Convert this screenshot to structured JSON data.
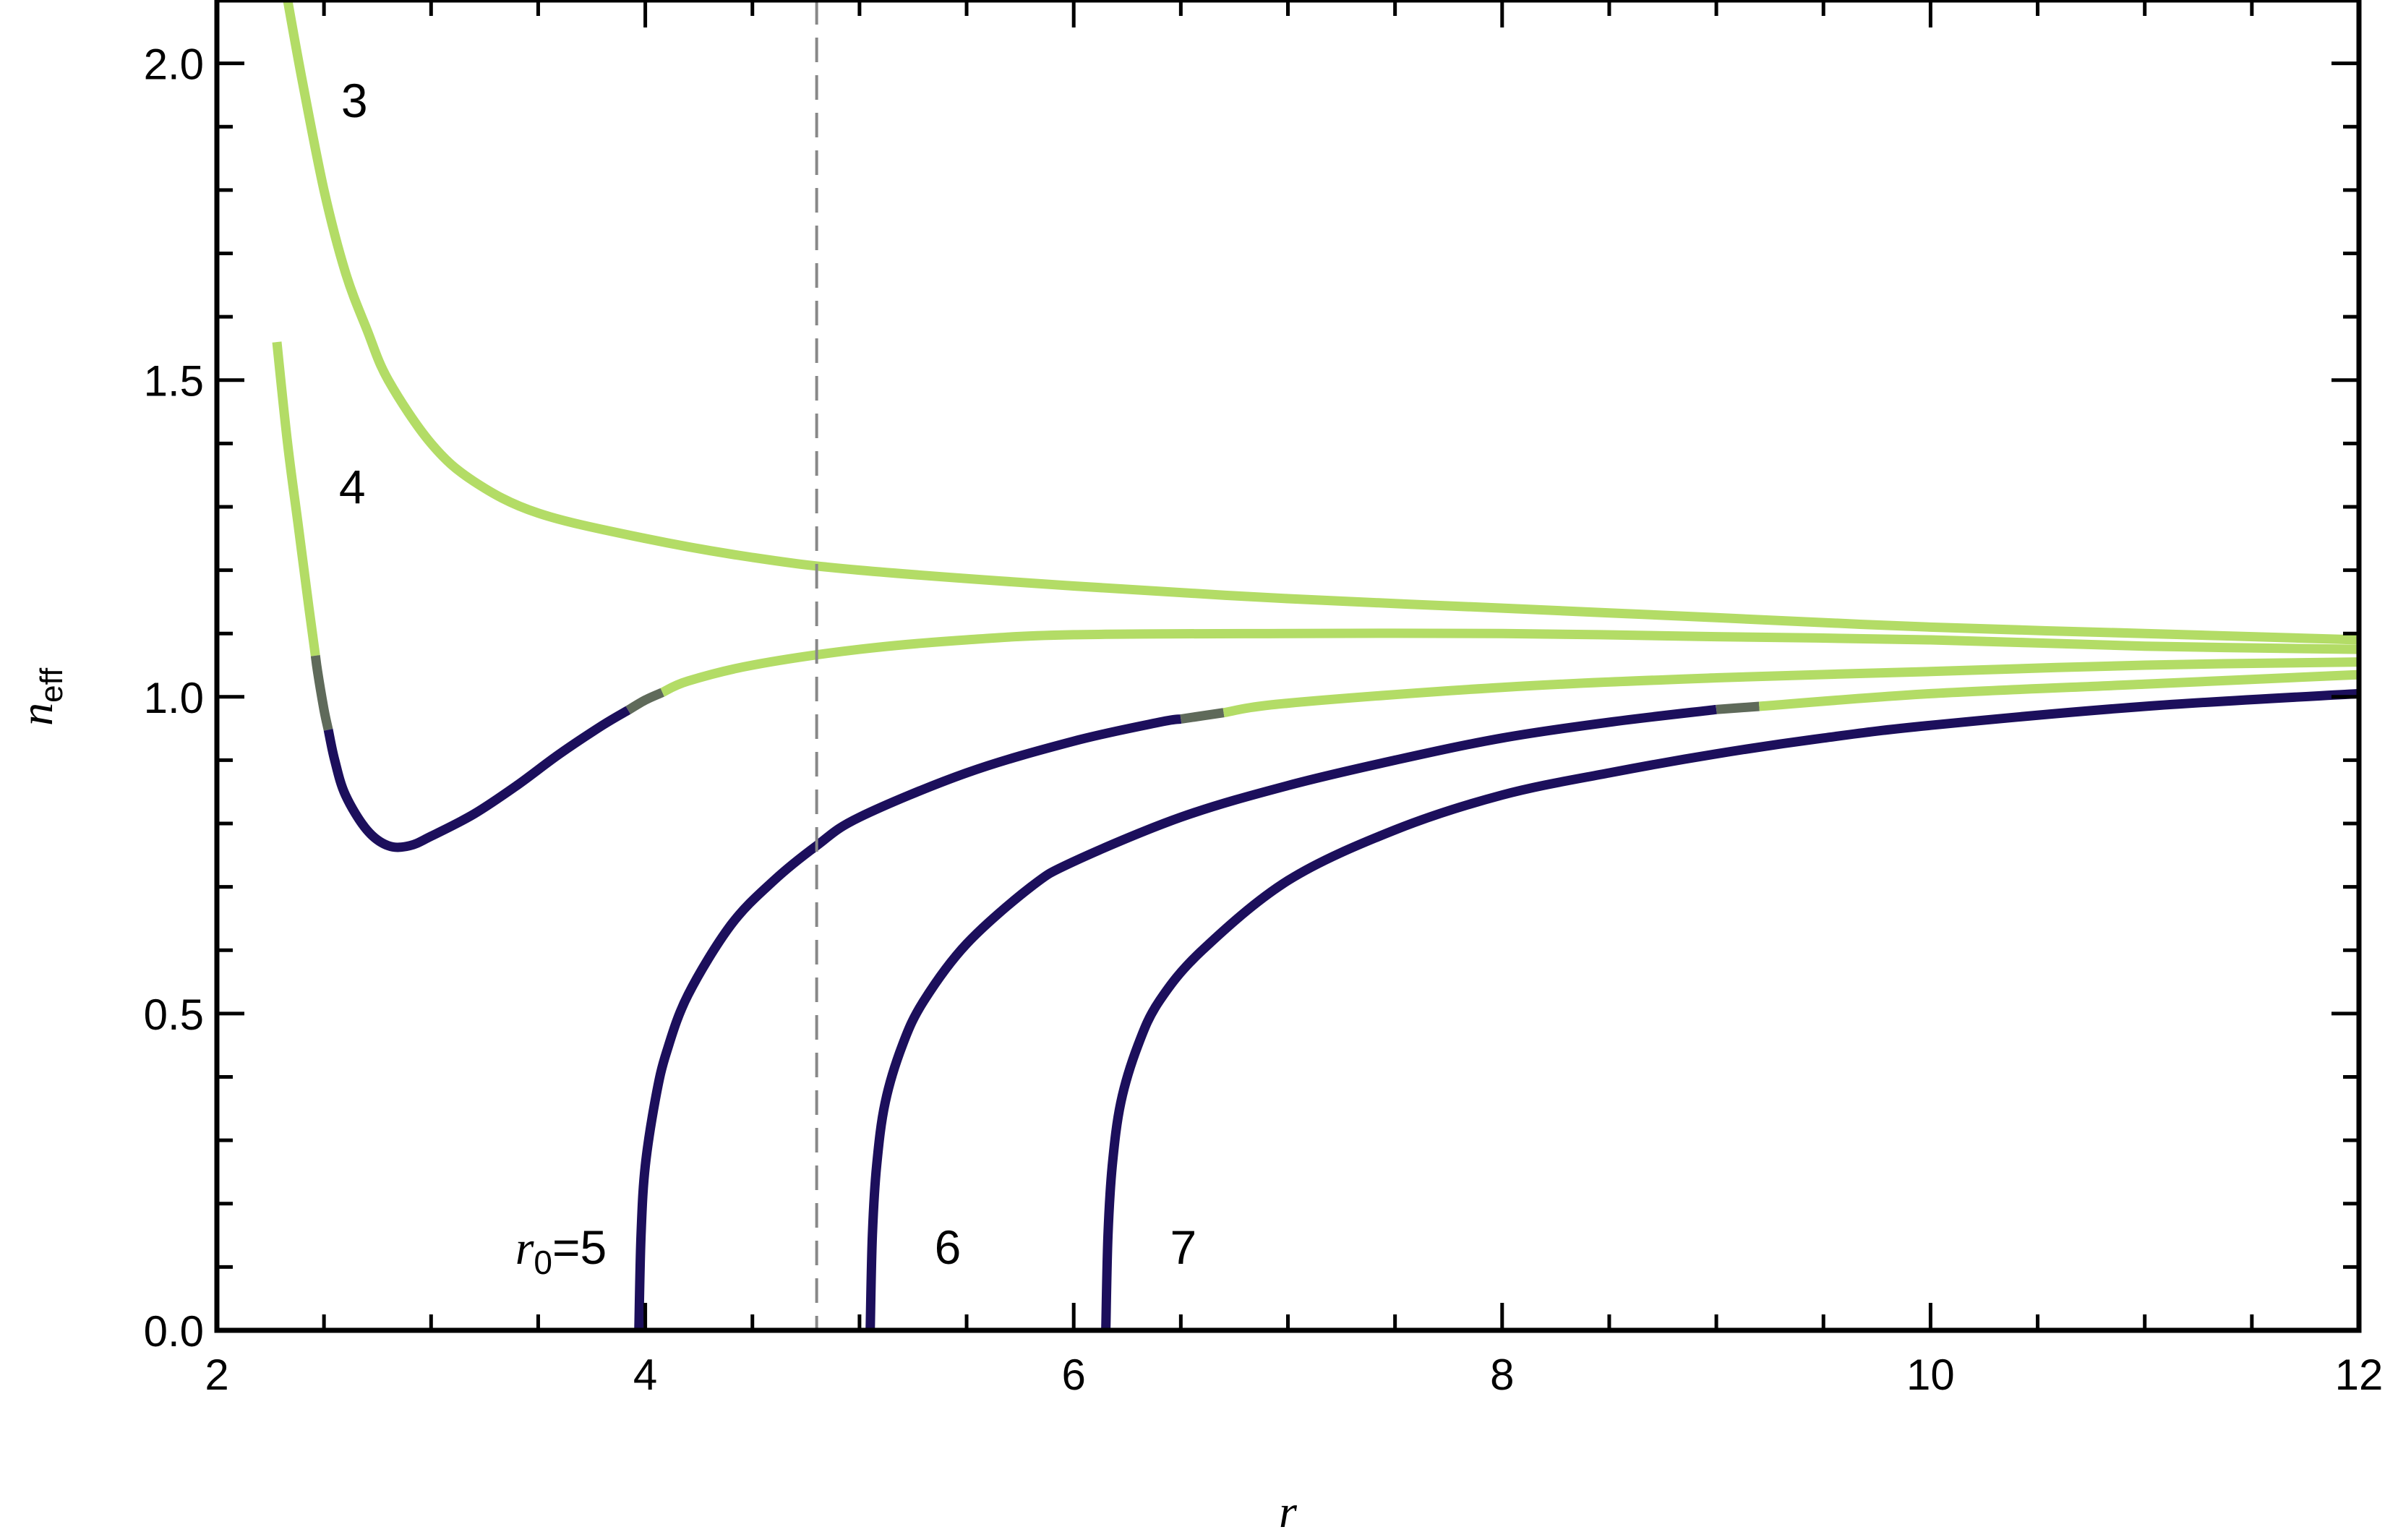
{
  "chart_data": {
    "type": "line",
    "xlabel": "r",
    "ylabel": {
      "base": "n",
      "subscript": "eff"
    },
    "xlim": [
      2,
      12
    ],
    "ylim": [
      0,
      2.1
    ],
    "xticks": [
      2,
      4,
      6,
      8,
      10,
      12
    ],
    "xtick_labels": [
      "2",
      "4",
      "6",
      "8",
      "10",
      "12"
    ],
    "yticks": [
      0,
      0.5,
      1,
      1.5,
      2
    ],
    "ytick_labels": [
      "0.0",
      "0.5",
      "1.0",
      "1.5",
      "2.0"
    ],
    "grid": false,
    "frame_ticks": true,
    "colors": {
      "light": "#b3dc66",
      "dark": "#1c0f5c",
      "transition": "#5f6a5a",
      "reference": "#888888"
    },
    "reference_line": {
      "x": 4.8,
      "style": "dashed"
    },
    "series": [
      {
        "label_value": "3",
        "label": "3",
        "points": [
          [
            2.33,
            2.1
          ],
          [
            2.4,
            1.97
          ],
          [
            2.5,
            1.8
          ],
          [
            2.6,
            1.67
          ],
          [
            2.7,
            1.58
          ],
          [
            2.8,
            1.5
          ],
          [
            3.0,
            1.4
          ],
          [
            3.2,
            1.34
          ],
          [
            3.5,
            1.29
          ],
          [
            4.0,
            1.25
          ],
          [
            4.5,
            1.22
          ],
          [
            5.0,
            1.2
          ],
          [
            6.0,
            1.175
          ],
          [
            7.0,
            1.155
          ],
          [
            8.0,
            1.14
          ],
          [
            9.0,
            1.125
          ],
          [
            10.0,
            1.11
          ],
          [
            11.0,
            1.1
          ],
          [
            12.0,
            1.09
          ]
        ],
        "segments": [
          {
            "from": 2.33,
            "to": 12,
            "tone": "light"
          }
        ]
      },
      {
        "label_value": "4",
        "label": "4",
        "points": [
          [
            2.28,
            1.56
          ],
          [
            2.33,
            1.4
          ],
          [
            2.38,
            1.27
          ],
          [
            2.43,
            1.14
          ],
          [
            2.47,
            1.04
          ],
          [
            2.5,
            0.98
          ],
          [
            2.55,
            0.9
          ],
          [
            2.6,
            0.845
          ],
          [
            2.7,
            0.79
          ],
          [
            2.8,
            0.765
          ],
          [
            2.9,
            0.765
          ],
          [
            3.0,
            0.78
          ],
          [
            3.2,
            0.815
          ],
          [
            3.4,
            0.86
          ],
          [
            3.6,
            0.91
          ],
          [
            3.8,
            0.955
          ],
          [
            4.0,
            0.995
          ],
          [
            4.2,
            1.025
          ],
          [
            4.5,
            1.05
          ],
          [
            5.0,
            1.075
          ],
          [
            5.5,
            1.09
          ],
          [
            6.0,
            1.098
          ],
          [
            7.0,
            1.1
          ],
          [
            8.0,
            1.1
          ],
          [
            9.0,
            1.095
          ],
          [
            10.0,
            1.09
          ],
          [
            11.0,
            1.08
          ],
          [
            12.0,
            1.075
          ]
        ],
        "segments": [
          {
            "from": 2.28,
            "to": 2.46,
            "tone": "light"
          },
          {
            "from": 2.46,
            "to": 2.52,
            "tone": "transition"
          },
          {
            "from": 2.52,
            "to": 3.92,
            "tone": "dark"
          },
          {
            "from": 3.92,
            "to": 4.08,
            "tone": "transition"
          },
          {
            "from": 4.08,
            "to": 12,
            "tone": "light"
          }
        ]
      },
      {
        "label_value": "5",
        "label": {
          "base": "r",
          "subscript": "0",
          "suffix": "=5"
        },
        "points": [
          [
            3.97,
            0.0
          ],
          [
            3.98,
            0.15
          ],
          [
            4.0,
            0.26
          ],
          [
            4.05,
            0.37
          ],
          [
            4.1,
            0.44
          ],
          [
            4.2,
            0.53
          ],
          [
            4.4,
            0.64
          ],
          [
            4.6,
            0.71
          ],
          [
            4.8,
            0.765
          ],
          [
            5.0,
            0.81
          ],
          [
            5.5,
            0.88
          ],
          [
            6.0,
            0.93
          ],
          [
            6.4,
            0.96
          ],
          [
            7.0,
            0.99
          ],
          [
            8.0,
            1.015
          ],
          [
            9.0,
            1.03
          ],
          [
            10.0,
            1.04
          ],
          [
            11.0,
            1.05
          ],
          [
            12.0,
            1.055
          ]
        ],
        "segments": [
          {
            "from": 3.97,
            "to": 6.5,
            "tone": "dark"
          },
          {
            "from": 6.5,
            "to": 6.7,
            "tone": "transition"
          },
          {
            "from": 6.7,
            "to": 12,
            "tone": "light"
          }
        ]
      },
      {
        "label_value": "6",
        "label": "6",
        "points": [
          [
            5.05,
            0.0
          ],
          [
            5.06,
            0.15
          ],
          [
            5.08,
            0.26
          ],
          [
            5.12,
            0.36
          ],
          [
            5.2,
            0.45
          ],
          [
            5.3,
            0.52
          ],
          [
            5.5,
            0.61
          ],
          [
            5.8,
            0.7
          ],
          [
            6.0,
            0.74
          ],
          [
            6.5,
            0.81
          ],
          [
            7.0,
            0.86
          ],
          [
            7.5,
            0.9
          ],
          [
            8.0,
            0.935
          ],
          [
            8.5,
            0.96
          ],
          [
            9.0,
            0.98
          ],
          [
            10.0,
            1.005
          ],
          [
            11.0,
            1.02
          ],
          [
            12.0,
            1.035
          ]
        ],
        "segments": [
          {
            "from": 5.05,
            "to": 9.0,
            "tone": "dark"
          },
          {
            "from": 9.0,
            "to": 9.2,
            "tone": "transition"
          },
          {
            "from": 9.2,
            "to": 12,
            "tone": "light"
          }
        ]
      },
      {
        "label_value": "7",
        "label": "7",
        "points": [
          [
            6.15,
            0.0
          ],
          [
            6.16,
            0.15
          ],
          [
            6.18,
            0.26
          ],
          [
            6.22,
            0.36
          ],
          [
            6.3,
            0.45
          ],
          [
            6.4,
            0.52
          ],
          [
            6.6,
            0.6
          ],
          [
            7.0,
            0.71
          ],
          [
            7.5,
            0.79
          ],
          [
            8.0,
            0.845
          ],
          [
            8.5,
            0.88
          ],
          [
            9.0,
            0.91
          ],
          [
            9.5,
            0.935
          ],
          [
            10.0,
            0.955
          ],
          [
            11.0,
            0.985
          ],
          [
            12.0,
            1.005
          ]
        ],
        "segments": [
          {
            "from": 6.15,
            "to": 12,
            "tone": "dark"
          }
        ]
      }
    ]
  }
}
